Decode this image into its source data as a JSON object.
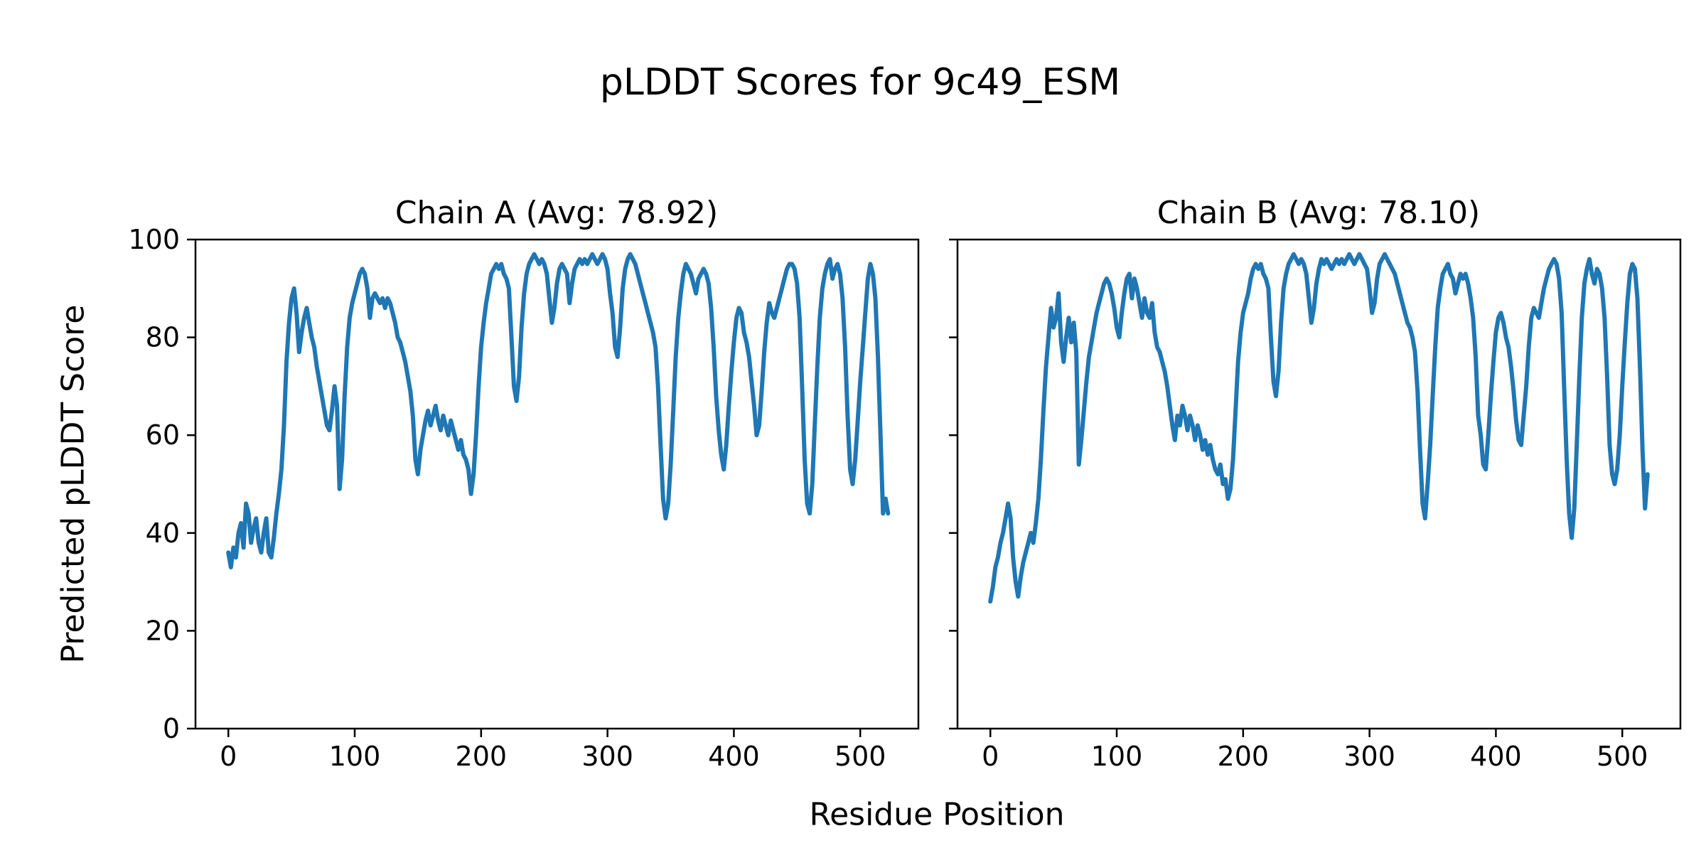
{
  "figure": {
    "suptitle": "pLDDT Scores for 9c49_ESM",
    "xlabel": "Residue Position",
    "ylabel": "Predicted pLDDT Score",
    "background_color": "#ffffff",
    "text_color": "#000000",
    "axis_color": "#000000"
  },
  "chart_data": [
    {
      "type": "line",
      "title": "Chain A (Avg: 78.92)",
      "series_name": "Chain A pLDDT",
      "average": 78.92,
      "line_color": "#1f77b4",
      "xlim": [
        -26,
        546
      ],
      "ylim": [
        0,
        100
      ],
      "xticks": [
        0,
        100,
        200,
        300,
        400,
        500
      ],
      "yticks": [
        0,
        20,
        40,
        60,
        80,
        100
      ],
      "grid": false,
      "legend": "none",
      "x_start": 0,
      "x_step": 2,
      "values": [
        36,
        33,
        37,
        35,
        40,
        42,
        37,
        46,
        44,
        38,
        41,
        43,
        38,
        36,
        40,
        43,
        36,
        35,
        39,
        44,
        48,
        53,
        62,
        75,
        83,
        88,
        90,
        85,
        77,
        81,
        84,
        86,
        83,
        80,
        78,
        74,
        71,
        68,
        65,
        62,
        61,
        65,
        70,
        66,
        49,
        55,
        68,
        78,
        84,
        87,
        89,
        91,
        93,
        94,
        93,
        90,
        84,
        88,
        89,
        88,
        87,
        88,
        86,
        88,
        87,
        85,
        83,
        80,
        79,
        77,
        75,
        72,
        69,
        64,
        55,
        52,
        57,
        60,
        63,
        65,
        62,
        64,
        66,
        63,
        61,
        64,
        62,
        60,
        63,
        61,
        59,
        57,
        59,
        56,
        55,
        53,
        48,
        52,
        60,
        70,
        78,
        83,
        87,
        90,
        93,
        94,
        95,
        94,
        95,
        93,
        92,
        90,
        80,
        70,
        67,
        72,
        82,
        89,
        93,
        95,
        96,
        97,
        96,
        95,
        96,
        95,
        93,
        88,
        83,
        86,
        91,
        94,
        95,
        94,
        93,
        87,
        91,
        94,
        95,
        96,
        95,
        96,
        95,
        96,
        97,
        96,
        95,
        96,
        97,
        96,
        94,
        89,
        85,
        78,
        76,
        82,
        90,
        94,
        96,
        97,
        96,
        95,
        93,
        91,
        89,
        87,
        85,
        83,
        81,
        78,
        70,
        58,
        47,
        43,
        46,
        54,
        65,
        76,
        84,
        89,
        93,
        95,
        94,
        93,
        91,
        89,
        92,
        93,
        94,
        93,
        91,
        86,
        78,
        68,
        61,
        56,
        53,
        58,
        66,
        73,
        79,
        84,
        86,
        85,
        81,
        79,
        76,
        71,
        66,
        60,
        62,
        69,
        77,
        83,
        87,
        85,
        84,
        86,
        88,
        90,
        92,
        94,
        95,
        95,
        94,
        91,
        84,
        70,
        55,
        46,
        44,
        50,
        62,
        74,
        84,
        90,
        93,
        95,
        96,
        92,
        94,
        95,
        93,
        88,
        78,
        64,
        53,
        50,
        55,
        63,
        71,
        78,
        85,
        92,
        95,
        93,
        88,
        76,
        60,
        44,
        47,
        44
      ]
    },
    {
      "type": "line",
      "title": "Chain B (Avg: 78.10)",
      "series_name": "Chain B pLDDT",
      "average": 78.1,
      "line_color": "#1f77b4",
      "xlim": [
        -26,
        546
      ],
      "ylim": [
        0,
        100
      ],
      "xticks": [
        0,
        100,
        200,
        300,
        400,
        500
      ],
      "yticks": [
        0,
        20,
        40,
        60,
        80,
        100
      ],
      "grid": false,
      "legend": "none",
      "x_start": 0,
      "x_step": 2,
      "values": [
        26,
        29,
        33,
        35,
        38,
        40,
        43,
        46,
        43,
        35,
        30,
        27,
        31,
        34,
        36,
        38,
        40,
        38,
        42,
        47,
        55,
        65,
        74,
        80,
        86,
        82,
        84,
        89,
        79,
        75,
        80,
        84,
        79,
        83,
        77,
        54,
        59,
        65,
        71,
        76,
        79,
        82,
        85,
        87,
        89,
        91,
        92,
        91,
        89,
        86,
        82,
        80,
        85,
        89,
        92,
        93,
        88,
        92,
        90,
        87,
        84,
        88,
        85,
        84,
        87,
        81,
        78,
        77,
        75,
        73,
        70,
        66,
        62,
        59,
        64,
        62,
        66,
        64,
        61,
        64,
        62,
        59,
        62,
        60,
        57,
        59,
        56,
        58,
        55,
        53,
        52,
        54,
        50,
        51,
        47,
        49,
        55,
        65,
        75,
        81,
        85,
        87,
        89,
        92,
        94,
        95,
        94,
        95,
        93,
        92,
        90,
        80,
        71,
        68,
        73,
        83,
        90,
        93,
        95,
        96,
        97,
        96,
        95,
        96,
        95,
        93,
        88,
        83,
        86,
        91,
        94,
        96,
        95,
        96,
        95,
        94,
        95,
        96,
        95,
        96,
        95,
        96,
        97,
        96,
        95,
        96,
        97,
        96,
        95,
        94,
        90,
        85,
        87,
        92,
        95,
        96,
        97,
        96,
        95,
        94,
        93,
        91,
        89,
        87,
        85,
        83,
        82,
        80,
        77,
        69,
        57,
        46,
        43,
        50,
        58,
        68,
        78,
        86,
        90,
        93,
        94,
        95,
        93,
        92,
        89,
        91,
        93,
        92,
        93,
        91,
        88,
        84,
        76,
        64,
        60,
        54,
        53,
        60,
        68,
        75,
        81,
        84,
        85,
        83,
        80,
        78,
        74,
        69,
        63,
        59,
        58,
        64,
        70,
        78,
        84,
        86,
        85,
        84,
        87,
        90,
        92,
        94,
        95,
        96,
        95,
        92,
        85,
        70,
        55,
        44,
        39,
        45,
        58,
        72,
        84,
        91,
        94,
        96,
        93,
        91,
        94,
        93,
        90,
        84,
        72,
        58,
        52,
        50,
        53,
        60,
        70,
        79,
        87,
        93,
        95,
        94,
        88,
        74,
        57,
        45,
        52
      ]
    }
  ]
}
